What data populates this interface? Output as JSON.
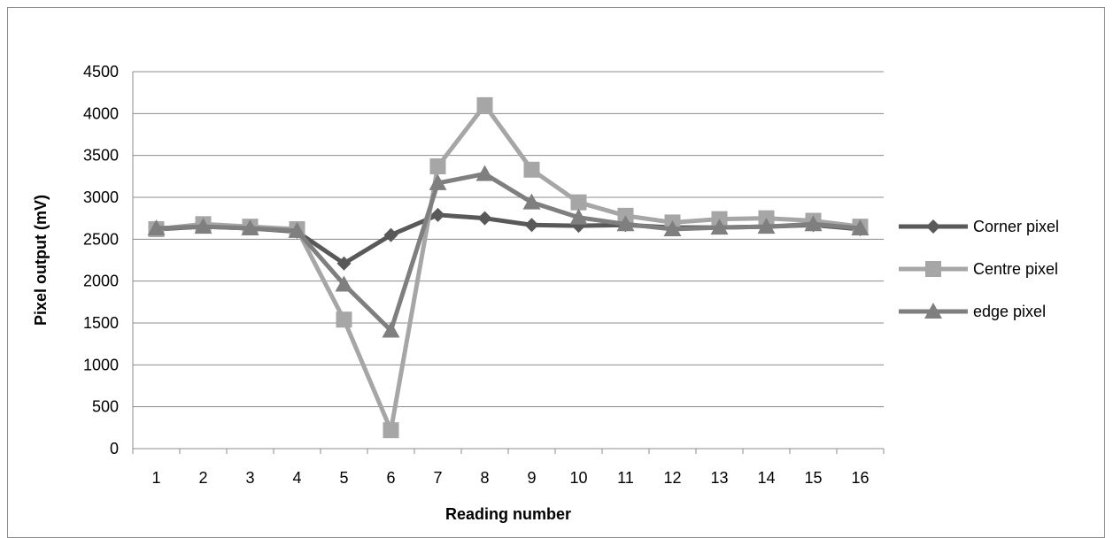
{
  "chart_data": {
    "type": "line",
    "title": "",
    "xlabel": "Reading number",
    "ylabel": "Pixel output (mV)",
    "categories": [
      "1",
      "2",
      "3",
      "4",
      "5",
      "6",
      "7",
      "8",
      "9",
      "10",
      "11",
      "12",
      "13",
      "14",
      "15",
      "16"
    ],
    "ylim": [
      0,
      4500
    ],
    "yticks": [
      "0",
      "500",
      "1000",
      "1500",
      "2000",
      "2500",
      "3000",
      "3500",
      "4000",
      "4500"
    ],
    "grid": "horizontal",
    "legend_position": "right",
    "series": [
      {
        "name": "Corner pixel",
        "marker": "diamond",
        "color": "#595959",
        "values": [
          2620,
          2650,
          2630,
          2590,
          2210,
          2550,
          2790,
          2750,
          2670,
          2660,
          2670,
          2640,
          2640,
          2650,
          2670,
          2620
        ]
      },
      {
        "name": "Centre pixel",
        "marker": "square",
        "color": "#a6a6a6",
        "values": [
          2620,
          2680,
          2650,
          2620,
          1540,
          220,
          3370,
          4100,
          3330,
          2940,
          2780,
          2700,
          2740,
          2750,
          2720,
          2650
        ]
      },
      {
        "name": "edge pixel",
        "marker": "triangle",
        "color": "#7f7f7f",
        "values": [
          2630,
          2650,
          2630,
          2600,
          1960,
          1410,
          3170,
          3280,
          2940,
          2760,
          2680,
          2620,
          2640,
          2650,
          2680,
          2630
        ]
      }
    ]
  }
}
